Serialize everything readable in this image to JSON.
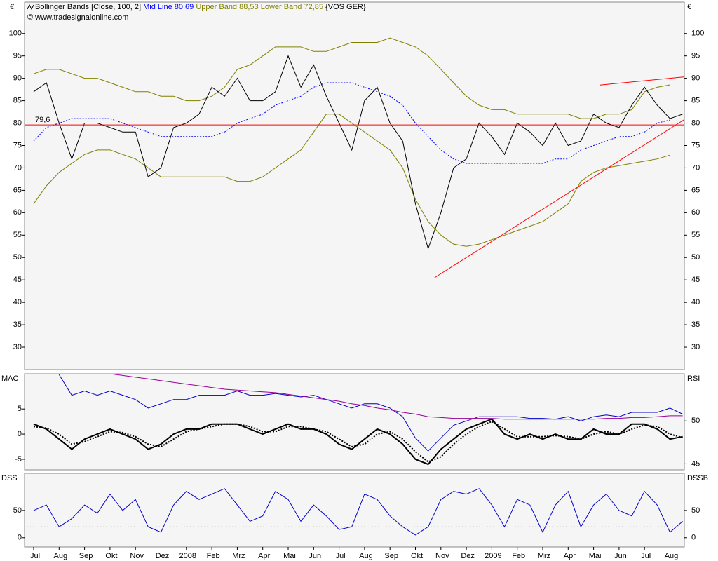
{
  "chart_data": [
    {
      "type": "line",
      "title": "Bollinger Bands [Close, 100, 2]",
      "ticker": "{VOS GER}",
      "credit": "© www.tradesignalonline.com",
      "unit": "€",
      "categories": [
        "Jul",
        null,
        "Aug",
        null,
        "Sep",
        null,
        "Okt",
        null,
        "Nov",
        null,
        "Dez",
        null,
        "2008",
        null,
        "Feb",
        null,
        "Mrz",
        null,
        "Apr",
        null,
        "Mai",
        null,
        "Jun",
        null,
        "Jul",
        null,
        "Aug",
        null,
        "Sep",
        null,
        "Okt",
        null,
        "Nov",
        null,
        "Dez",
        null,
        "2009",
        null,
        "Feb",
        null,
        "Mrz",
        null,
        "Apr",
        null,
        "Mai",
        null,
        "Jun",
        null,
        "Jul",
        null,
        "Aug",
        null
      ],
      "values": [
        87,
        89,
        80,
        72,
        80,
        80,
        79,
        78,
        78,
        68,
        70,
        79,
        80,
        82,
        88,
        86,
        90,
        85,
        85,
        87,
        95,
        88,
        93,
        86,
        80,
        74,
        85,
        88,
        80,
        76,
        62,
        52,
        60,
        70,
        72,
        80,
        77,
        73,
        80,
        78,
        75,
        80,
        75,
        76,
        82,
        80,
        79,
        84,
        88,
        84,
        81,
        82
      ],
      "color": "#000000",
      "series": [
        {
          "name": "Mid Line 80,69",
          "color": "#0000ff",
          "dash": true,
          "values": [
            76,
            79,
            80,
            81,
            81,
            81,
            81,
            80,
            79,
            78,
            77,
            77,
            77,
            77,
            77,
            78,
            80,
            81,
            82,
            84,
            85,
            86,
            88,
            89,
            89,
            89,
            88,
            87,
            86,
            84,
            80,
            77,
            74,
            72,
            71,
            71,
            71,
            71,
            71,
            71,
            71,
            72,
            72,
            74,
            75,
            76,
            77,
            77,
            78,
            80,
            80.69,
            null
          ]
        },
        {
          "name": "Upper Band 88,53",
          "color": "#808000",
          "values": [
            91,
            92,
            92,
            91,
            90,
            90,
            89,
            88,
            87,
            87,
            86,
            86,
            85,
            85,
            86,
            88,
            92,
            93,
            95,
            97,
            97,
            97,
            96,
            96,
            97,
            98,
            98,
            98,
            99,
            98,
            97,
            95,
            92,
            89,
            86,
            84,
            83,
            83,
            82,
            82,
            82,
            82,
            82,
            81,
            81,
            82,
            82,
            83,
            87,
            88,
            88.53,
            null
          ]
        },
        {
          "name": "Lower Band 72,85",
          "color": "#808000",
          "values": [
            62,
            66,
            69,
            71,
            73,
            74,
            74,
            73,
            72,
            70,
            68,
            68,
            68,
            68,
            68,
            68,
            67,
            67,
            68,
            70,
            72,
            74,
            78,
            82,
            82,
            80,
            78,
            76,
            74,
            70,
            63,
            58,
            55,
            53,
            52.5,
            53,
            54,
            55,
            56,
            57,
            58,
            60,
            62,
            67,
            69,
            70,
            70.5,
            71,
            71.5,
            72,
            72.85,
            null
          ]
        }
      ],
      "hline": {
        "value": 79.6,
        "label": "79,6",
        "color": "#ff0000"
      },
      "trendlines": [
        {
          "x": [
            31.5,
            51.8
          ],
          "y": [
            45.5,
            82
          ],
          "color": "#ff0000"
        },
        {
          "x": [
            44.5,
            51.8
          ],
          "y": [
            88.5,
            90.5
          ],
          "color": "#ff0000"
        }
      ],
      "ylim": [
        25,
        107
      ],
      "yticks": [
        30,
        35,
        40,
        45,
        50,
        55,
        60,
        65,
        70,
        75,
        80,
        85,
        90,
        95,
        100
      ]
    },
    {
      "type": "line",
      "ylabel": "MAC",
      "y2label": "RSI",
      "series": [
        {
          "color": "#000000",
          "values": [
            2,
            1,
            -1,
            -3,
            -1,
            0,
            1,
            0,
            -1,
            -3,
            -2,
            0,
            1,
            1,
            2,
            2,
            2,
            1,
            0,
            1,
            2,
            1,
            1,
            0,
            -2,
            -3,
            -1,
            1,
            0,
            -2,
            -5,
            -6,
            -3,
            -1,
            1,
            2,
            3,
            0,
            -1,
            0,
            -1,
            0,
            -1,
            -1,
            1,
            0,
            0,
            2,
            2,
            1,
            -1,
            -0.5
          ]
        },
        {
          "color": "#000000",
          "dash": true,
          "values": [
            1.5,
            1.2,
            0,
            -2,
            -1.5,
            -0.5,
            0.5,
            0.3,
            -0.5,
            -2,
            -2.5,
            -1,
            0.5,
            1,
            1.5,
            2,
            2,
            1.5,
            0.5,
            0.5,
            1.5,
            1.5,
            1,
            0.5,
            -1,
            -2.5,
            -2,
            0,
            0.5,
            -1,
            -3.5,
            -5.5,
            -4.5,
            -2,
            0,
            1.5,
            2.5,
            1,
            -0.5,
            -0.5,
            -0.5,
            -0.3,
            -0.5,
            -1,
            0,
            0.5,
            0,
            1,
            1.8,
            1.5,
            0,
            -0.7
          ]
        },
        {
          "color": "#0000cc",
          "axis": "y2",
          "values": [
            null,
            null,
            55.4,
            53,
            53.5,
            53,
            53.5,
            53,
            52.5,
            51.5,
            52,
            52.5,
            52.5,
            53,
            53,
            53,
            53.5,
            53,
            53,
            53.2,
            53,
            52.8,
            53,
            52.5,
            52,
            51.5,
            52,
            52,
            51.5,
            50.5,
            48,
            46.5,
            48,
            49.5,
            50,
            50.5,
            50.5,
            50.5,
            50.5,
            50.3,
            50.3,
            50.2,
            50.5,
            50,
            50.5,
            50.7,
            50.5,
            51,
            51,
            51,
            51.5,
            50.8
          ]
        },
        {
          "color": "#990099",
          "axis": "y2",
          "values": [
            null,
            null,
            null,
            null,
            null,
            null,
            55.5,
            55.3,
            55.1,
            54.9,
            54.7,
            54.5,
            54.3,
            54.1,
            53.9,
            53.7,
            53.6,
            53.5,
            53.4,
            53.3,
            53.1,
            52.9,
            52.7,
            52.5,
            52.3,
            52,
            51.8,
            51.5,
            51.3,
            51,
            50.8,
            50.5,
            50.4,
            50.3,
            50.3,
            50.3,
            50.3,
            50.2,
            50.2,
            50.2,
            50.2,
            50.2,
            50.2,
            50.2,
            50.2,
            50.3,
            50.3,
            50.4,
            50.4,
            50.5,
            50.6,
            50.6
          ]
        }
      ],
      "ylim": [
        -7.1,
        12
      ],
      "yticks": [
        5,
        0,
        -5
      ],
      "y2lim": [
        44.3,
        55.5
      ],
      "y2ticks": [
        50,
        45
      ]
    },
    {
      "type": "line",
      "ylabel": "DSS",
      "y2label": "DSSB",
      "series": [
        {
          "color": "#0000cc",
          "values": [
            50,
            60,
            20,
            35,
            60,
            45,
            80,
            50,
            70,
            20,
            10,
            60,
            85,
            70,
            80,
            90,
            60,
            30,
            40,
            85,
            70,
            30,
            60,
            40,
            15,
            20,
            80,
            70,
            40,
            20,
            5,
            20,
            70,
            85,
            80,
            90,
            60,
            20,
            70,
            60,
            10,
            60,
            85,
            20,
            60,
            80,
            50,
            40,
            85,
            60,
            10,
            30
          ]
        }
      ],
      "levels": [
        20,
        80
      ],
      "ylim": [
        -17,
        118
      ],
      "yticks": [
        0,
        50
      ]
    }
  ]
}
